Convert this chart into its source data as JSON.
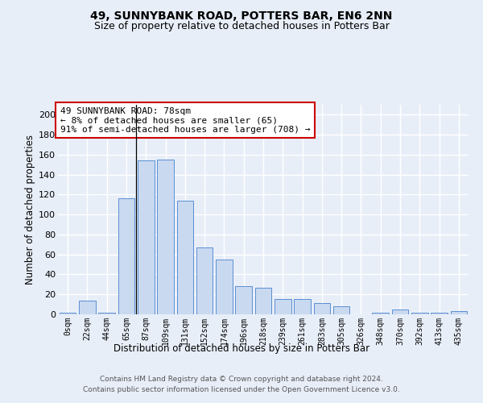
{
  "title": "49, SUNNYBANK ROAD, POTTERS BAR, EN6 2NN",
  "subtitle": "Size of property relative to detached houses in Potters Bar",
  "xlabel": "Distribution of detached houses by size in Potters Bar",
  "ylabel": "Number of detached properties",
  "bar_labels": [
    "0sqm",
    "22sqm",
    "44sqm",
    "65sqm",
    "87sqm",
    "109sqm",
    "131sqm",
    "152sqm",
    "174sqm",
    "196sqm",
    "218sqm",
    "239sqm",
    "261sqm",
    "283sqm",
    "305sqm",
    "326sqm",
    "348sqm",
    "370sqm",
    "392sqm",
    "413sqm",
    "435sqm"
  ],
  "bar_values": [
    2,
    14,
    2,
    116,
    154,
    155,
    114,
    67,
    55,
    28,
    27,
    15,
    15,
    11,
    8,
    0,
    2,
    5,
    2,
    2,
    3
  ],
  "bar_color": "#c9d9f0",
  "bar_edge_color": "#5b8fd4",
  "background_color": "#e8eef8",
  "grid_color": "#ffffff",
  "ylim": [
    0,
    210
  ],
  "yticks": [
    0,
    20,
    40,
    60,
    80,
    100,
    120,
    140,
    160,
    180,
    200
  ],
  "annotation_box_text": "49 SUNNYBANK ROAD: 78sqm\n← 8% of detached houses are smaller (65)\n91% of semi-detached houses are larger (708) →",
  "annotation_box_color": "#ffffff",
  "annotation_box_edge_color": "#cc0000",
  "footnote": "Contains HM Land Registry data © Crown copyright and database right 2024.\nContains public sector information licensed under the Open Government Licence v3.0.",
  "title_fontsize": 10,
  "subtitle_fontsize": 9,
  "annotation_fontsize": 8,
  "xlabel_fontsize": 8.5,
  "ylabel_fontsize": 8.5,
  "footnote_fontsize": 6.5,
  "tick_fontsize": 7,
  "ytick_fontsize": 8
}
